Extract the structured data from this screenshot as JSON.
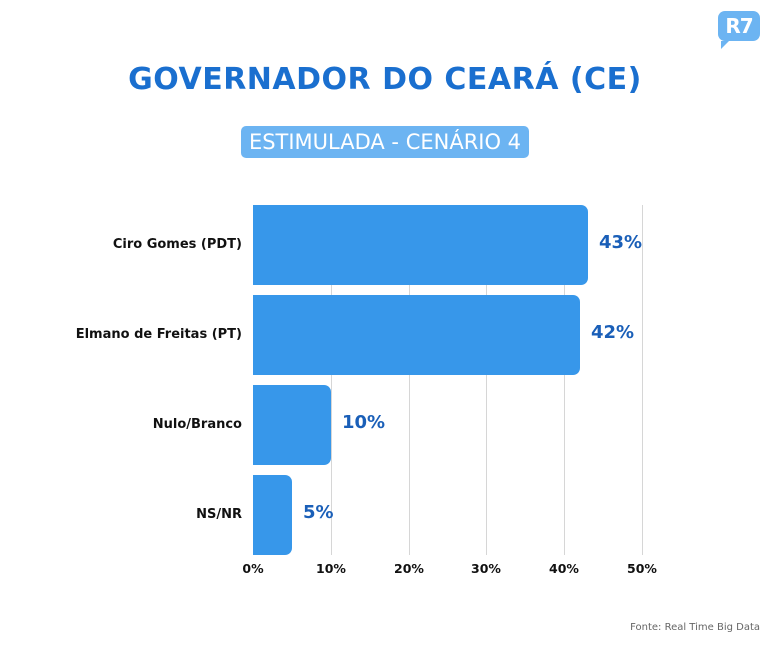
{
  "logo": {
    "text": "R7"
  },
  "header": {
    "title": "GOVERNADOR DO CEARÁ (CE)",
    "subtitle": "ESTIMULADA - CENÁRIO 4"
  },
  "colors": {
    "bar": "#3797ea",
    "title": "#1a6fcf",
    "value_label": "#1a5fb8",
    "badge": "#6cb4f2"
  },
  "footer": {
    "source": "Fonte: Real Time Big Data"
  },
  "chart_data": {
    "type": "bar",
    "orientation": "horizontal",
    "title": "GOVERNADOR DO CEARÁ (CE)",
    "subtitle": "ESTIMULADA - CENÁRIO 4",
    "categories": [
      "Ciro Gomes (PDT)",
      "Elmano de Freitas (PT)",
      "Nulo/Branco",
      "NS/NR"
    ],
    "values": [
      43,
      42,
      10,
      5
    ],
    "value_labels": [
      "43%",
      "42%",
      "10%",
      "5%"
    ],
    "xlabel": "",
    "ylabel": "",
    "xlim": [
      0,
      50
    ],
    "x_ticks": [
      "0%",
      "10%",
      "20%",
      "30%",
      "40%",
      "50%"
    ],
    "grid": true,
    "legend": null,
    "source": "Fonte: Real Time Big Data"
  }
}
